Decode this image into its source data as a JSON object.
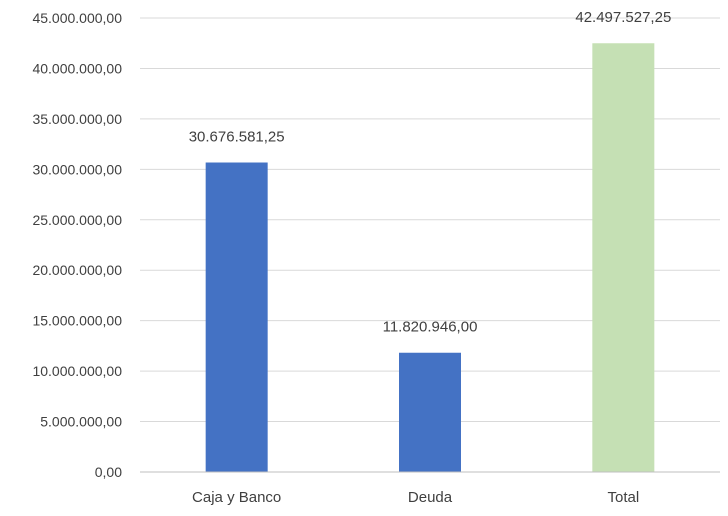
{
  "chart_data": {
    "type": "bar",
    "categories": [
      "Caja y Banco",
      "Deuda",
      "Total"
    ],
    "values": [
      30676581.25,
      11820946.0,
      42497527.25
    ],
    "value_labels": [
      "30.676.581,25",
      "11.820.946,00",
      "42.497.527,25"
    ],
    "bar_colors": [
      "#4472c4",
      "#4472c4",
      "#c5e0b4"
    ],
    "ylim": [
      0,
      45000000
    ],
    "ytick_values": [
      0,
      5000000,
      10000000,
      15000000,
      20000000,
      25000000,
      30000000,
      35000000,
      40000000,
      45000000
    ],
    "ytick_labels": [
      "0,00",
      "5.000.000,00",
      "10.000.000,00",
      "15.000.000,00",
      "20.000.000,00",
      "25.000.000,00",
      "30.000.000,00",
      "35.000.000,00",
      "40.000.000,00",
      "45.000.000,00"
    ],
    "grid": true,
    "legend": "none"
  }
}
